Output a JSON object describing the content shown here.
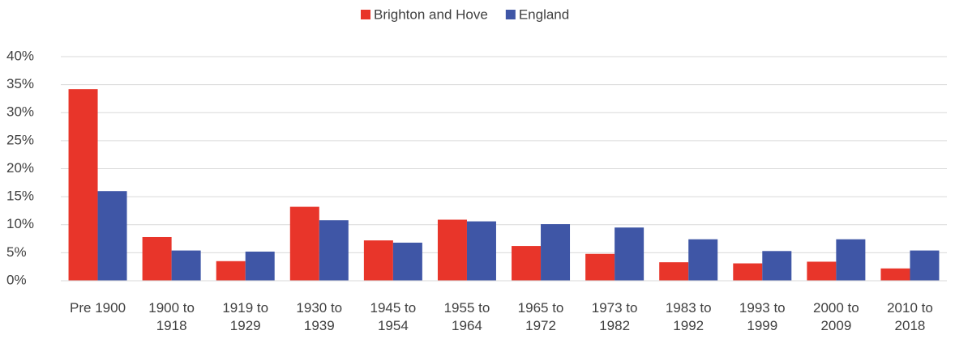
{
  "chart_data": {
    "type": "bar",
    "categories": [
      "Pre 1900",
      "1900 to 1918",
      "1919 to 1929",
      "1930 to 1939",
      "1945 to 1954",
      "1955 to 1964",
      "1965 to 1972",
      "1973 to 1982",
      "1983 to 1992",
      "1993 to 1999",
      "2000 to 2009",
      "2010 to 2018"
    ],
    "series": [
      {
        "name": "Brighton and Hove",
        "color": "#e8352a",
        "values": [
          34.2,
          7.8,
          3.5,
          13.2,
          7.2,
          10.9,
          6.2,
          4.8,
          3.3,
          3.1,
          3.4,
          2.2
        ]
      },
      {
        "name": "England",
        "color": "#3f56a6",
        "values": [
          16.0,
          5.4,
          5.2,
          10.8,
          6.8,
          10.6,
          10.1,
          9.5,
          7.4,
          5.3,
          7.4,
          5.4
        ]
      }
    ],
    "ylim": [
      0,
      40
    ],
    "yticks": [
      {
        "value": 0,
        "label": "0%"
      },
      {
        "value": 5,
        "label": "5%"
      },
      {
        "value": 10,
        "label": "10%"
      },
      {
        "value": 15,
        "label": "15%"
      },
      {
        "value": 20,
        "label": "20%"
      },
      {
        "value": 25,
        "label": "25%"
      },
      {
        "value": 30,
        "label": "30%"
      },
      {
        "value": 35,
        "label": "35%"
      },
      {
        "value": 40,
        "label": "40%"
      }
    ],
    "grid": true,
    "legend": "top"
  }
}
